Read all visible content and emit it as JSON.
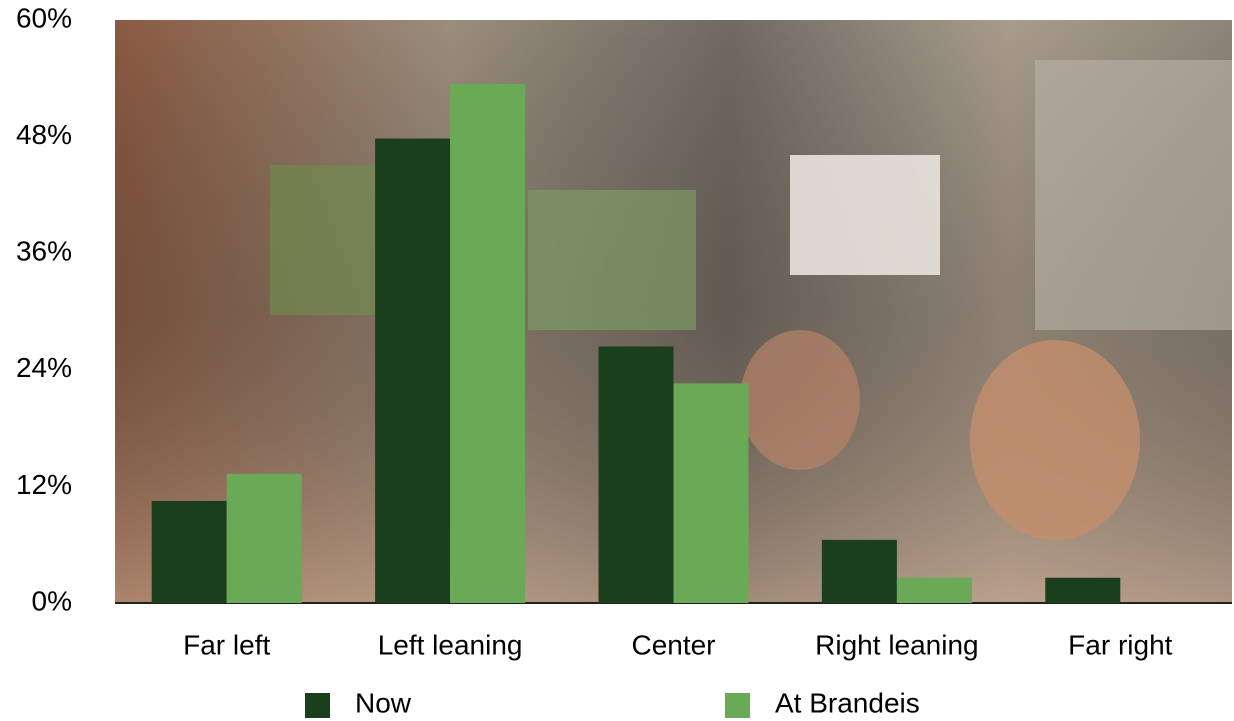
{
  "chart_data": {
    "type": "bar",
    "categories": [
      "Far left",
      "Left leaning",
      "Center",
      "Right leaning",
      "Far right"
    ],
    "series": [
      {
        "name": "Now",
        "color": "#1b3f1c",
        "values": [
          10.5,
          47.8,
          26.4,
          6.5,
          2.6
        ]
      },
      {
        "name": "At Brandeis",
        "color": "#6aa956",
        "values": [
          13.3,
          53.4,
          22.6,
          2.6,
          0
        ]
      }
    ],
    "ylim": [
      0,
      60
    ],
    "yticks": [
      {
        "value": 0,
        "label": "0%"
      },
      {
        "value": 12,
        "label": "12%"
      },
      {
        "value": 24,
        "label": "24%"
      },
      {
        "value": 36,
        "label": "36%"
      },
      {
        "value": 48,
        "label": "48%"
      },
      {
        "value": 60,
        "label": "60%"
      }
    ]
  }
}
